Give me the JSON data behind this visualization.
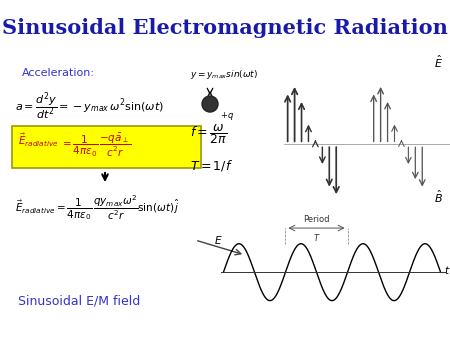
{
  "title": "Sinusoidal Electromagnetic Radiation",
  "title_color": "#1a1aaa",
  "title_fontsize": 15,
  "bg_color": "#f0f0f0",
  "acceleration_label": "Acceleration:",
  "acceleration_color": "#3333cc",
  "sinusoidal_label": "Sinusoidal E/M field",
  "sinusoidal_color": "#3333cc",
  "wave_color": "#000000",
  "axis_color": "#555555",
  "period_label": "Period",
  "period_color": "#555555",
  "T_label": "T",
  "wave_xlabel": "t",
  "wave_ylabel": "E",
  "eq_box_color": "#ffff00",
  "eq_box_edge": "#999900"
}
